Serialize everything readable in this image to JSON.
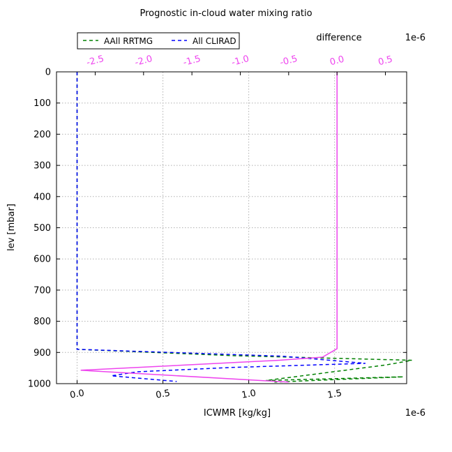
{
  "chart_data": {
    "type": "line",
    "title": "Prognostic in-cloud water mixing ratio",
    "xlabel": "ICWMR [kg/kg]",
    "ylabel": "lev [mbar]",
    "x_offset_label": "1e-6",
    "xlim": [
      -0.12,
      1.92
    ],
    "ylim": [
      1000,
      0
    ],
    "y_inverted": true,
    "x_ticks": [
      0.0,
      0.5,
      1.0,
      1.5
    ],
    "x_tick_labels": [
      "0.0",
      "0.5",
      "1.0",
      "1.5"
    ],
    "y_ticks": [
      0,
      100,
      200,
      300,
      400,
      500,
      600,
      700,
      800,
      900,
      1000
    ],
    "y_tick_labels": [
      "0",
      "100",
      "200",
      "300",
      "400",
      "500",
      "600",
      "700",
      "800",
      "900",
      "1000"
    ],
    "grid": true,
    "legend_placement": "top-left, above axes",
    "series": [
      {
        "name": "AAll RRTMG",
        "axis": "bottom",
        "color": "#008000",
        "dash": "dashed",
        "x": [
          0,
          0,
          0,
          0,
          0,
          0,
          0,
          0,
          0.9,
          1.95,
          1.8,
          1.1,
          1.9,
          1.15
        ],
        "y": [
          0,
          200,
          400,
          600,
          800,
          870,
          888,
          890,
          910,
          925,
          940,
          990,
          978,
          995
        ]
      },
      {
        "name": "All CLIRAD",
        "axis": "bottom",
        "color": "#0000ff",
        "dash": "dashed",
        "x": [
          0,
          0,
          0,
          0,
          0,
          0,
          0,
          0,
          1.2,
          1.68,
          0.9,
          0.35,
          0.2,
          0.58
        ],
        "y": [
          0,
          200,
          400,
          600,
          800,
          870,
          888,
          890,
          912,
          935,
          948,
          962,
          975,
          993
        ]
      },
      {
        "name": "",
        "axis": "top",
        "color": "#ee44ee",
        "dash": "solid",
        "x": [
          0.0,
          0.0,
          0.0,
          0.0,
          -0.15,
          -0.6,
          -1.35,
          -2.65,
          -0.5
        ],
        "y": [
          0,
          400,
          800,
          888,
          915,
          925,
          937,
          957,
          995
        ]
      }
    ],
    "top_axis": {
      "label": "difference",
      "offset_label": "1e-6",
      "xlim": [
        -2.9,
        0.72
      ],
      "ticks": [
        -2.5,
        -2.0,
        -1.5,
        -1.0,
        -0.5,
        0.0,
        0.5
      ],
      "tick_labels": [
        "-2.5",
        "-2.0",
        "-1.5",
        "-1.0",
        "-0.5",
        "0.0",
        "0.5"
      ],
      "color": "#ee44ee"
    }
  }
}
